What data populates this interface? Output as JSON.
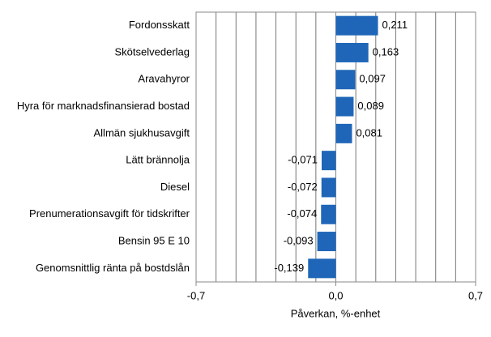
{
  "chart_data": {
    "type": "barh",
    "categories": [
      "Fordonsskatt",
      "Skötselvederlag",
      "Aravahyror",
      "Hyra för marknadsfinansierad bostad",
      "Allmän sjukhusavgift",
      "Lätt brännolja",
      "Diesel",
      "Prenumerationsavgift för tidskrifter",
      "Bensin 95 E 10",
      "Genomsnittlig ränta på bostdslån"
    ],
    "values": [
      0.211,
      0.163,
      0.097,
      0.089,
      0.081,
      -0.071,
      -0.072,
      -0.074,
      -0.093,
      -0.139
    ],
    "value_labels": [
      "0,211",
      "0,163",
      "0,097",
      "0,089",
      "0,081",
      "-0,071",
      "-0,072",
      "-0,074",
      "-0,093",
      "-0,139"
    ],
    "color": "#1f66b8",
    "xlim": [
      -0.7,
      0.7
    ],
    "xticks": [
      {
        "value": -0.7,
        "label": "-0,7"
      },
      {
        "value": 0,
        "label": "0,0"
      },
      {
        "value": 0.7,
        "label": "0,7"
      }
    ],
    "xgrid": [
      -0.6,
      -0.5,
      -0.4,
      -0.3,
      -0.2,
      -0.1,
      0.1,
      0.2,
      0.3,
      0.4,
      0.5,
      0.6
    ],
    "xlabel": "Påverkan, %-enhet",
    "grid": true
  }
}
